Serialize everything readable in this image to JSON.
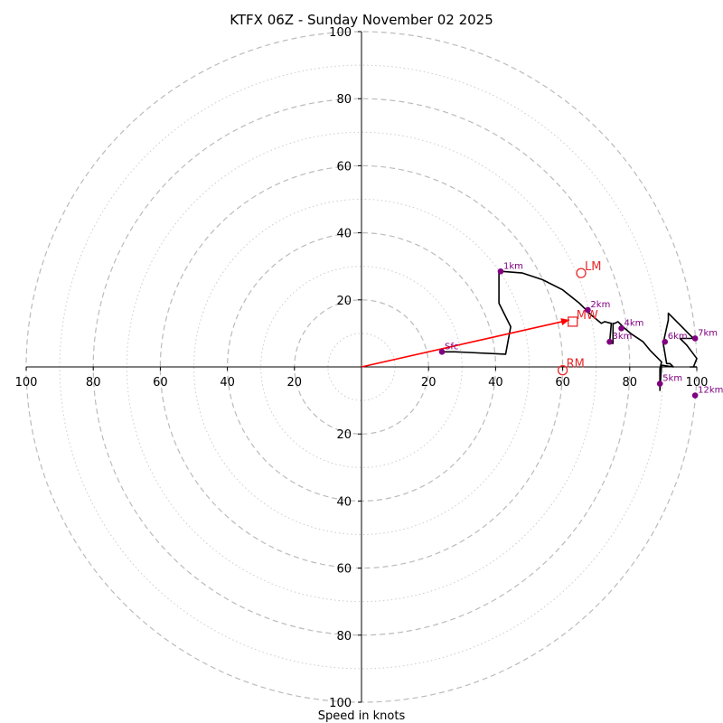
{
  "title": "KTFX 06Z - Sunday November 02 2025",
  "chart_data": {
    "type": "hodograph",
    "title": "KTFX 06Z - Sunday November 02 2025",
    "xlabel": "Speed in knots",
    "units": "knots",
    "max_ring": 100,
    "major_rings": [
      20,
      40,
      60,
      80,
      100
    ],
    "minor_rings": [
      10,
      30,
      50,
      70,
      90
    ],
    "x_tick_labels": [
      {
        "value": -100,
        "label": "100"
      },
      {
        "value": -80,
        "label": "80"
      },
      {
        "value": -60,
        "label": "60"
      },
      {
        "value": -40,
        "label": "40"
      },
      {
        "value": -20,
        "label": "20"
      },
      {
        "value": 20,
        "label": "20"
      },
      {
        "value": 40,
        "label": "40"
      },
      {
        "value": 60,
        "label": "60"
      },
      {
        "value": 80,
        "label": "80"
      },
      {
        "value": 100,
        "label": "100"
      }
    ],
    "y_tick_labels": [
      {
        "value": 100,
        "label": "100"
      },
      {
        "value": 80,
        "label": "80"
      },
      {
        "value": 60,
        "label": "60"
      },
      {
        "value": 40,
        "label": "40"
      },
      {
        "value": 20,
        "label": "20"
      },
      {
        "value": -20,
        "label": "20"
      },
      {
        "value": -40,
        "label": "40"
      },
      {
        "value": -60,
        "label": "60"
      },
      {
        "value": -80,
        "label": "80"
      },
      {
        "value": -100,
        "label": "100"
      }
    ],
    "trace": [
      [
        24,
        4.5
      ],
      [
        28,
        4.5
      ],
      [
        43,
        3.8
      ],
      [
        44.5,
        12
      ],
      [
        41,
        19
      ],
      [
        41,
        28.5
      ],
      [
        42,
        28.5
      ],
      [
        48,
        28
      ],
      [
        54,
        26
      ],
      [
        60,
        23
      ],
      [
        65,
        19
      ],
      [
        67,
        17
      ],
      [
        68.5,
        15.5
      ],
      [
        71.5,
        13
      ],
      [
        72.5,
        13.5
      ],
      [
        74.5,
        13
      ],
      [
        74,
        7
      ],
      [
        75,
        7
      ],
      [
        75,
        13
      ],
      [
        75.5,
        13
      ],
      [
        76.5,
        13.5
      ],
      [
        78.5,
        11.5
      ],
      [
        80.5,
        9.8
      ],
      [
        84,
        7.5
      ],
      [
        86,
        5
      ],
      [
        88,
        3
      ],
      [
        89.5,
        1.5
      ],
      [
        89,
        -0.5
      ],
      [
        89,
        -7
      ],
      [
        89.5,
        0.5
      ],
      [
        93,
        0
      ],
      [
        92,
        1
      ],
      [
        91,
        1
      ],
      [
        90,
        7
      ],
      [
        90.5,
        9.5
      ],
      [
        91.5,
        14
      ],
      [
        91.5,
        16
      ],
      [
        95,
        12.5
      ],
      [
        97.5,
        10
      ],
      [
        99,
        8.5
      ],
      [
        95,
        8.5
      ],
      [
        97,
        6.5
      ],
      [
        100,
        2.5
      ],
      [
        99,
        0
      ],
      [
        98,
        0
      ],
      [
        100,
        0
      ]
    ],
    "height_markers": [
      {
        "label": "Sfc",
        "u": 24,
        "v": 4.5
      },
      {
        "label": "1km",
        "u": 41.5,
        "v": 28.5
      },
      {
        "label": "2km",
        "u": 67.5,
        "v": 17
      },
      {
        "label": "3km",
        "u": 74,
        "v": 7.5
      },
      {
        "label": "4km",
        "u": 77.5,
        "v": 11.5
      },
      {
        "label": "5km",
        "u": 89,
        "v": -5
      },
      {
        "label": "6km",
        "u": 90.5,
        "v": 7.5
      },
      {
        "label": "7km",
        "u": 99.5,
        "v": 8.5
      },
      {
        "label": "12km",
        "u": 99.5,
        "v": -8.5
      }
    ],
    "motion_markers": [
      {
        "label": "LM",
        "u": 65.5,
        "v": 28,
        "shape": "circle"
      },
      {
        "label": "MW",
        "u": 63,
        "v": 13.5,
        "shape": "square"
      },
      {
        "label": "RM",
        "u": 60,
        "v": -1,
        "shape": "circle"
      }
    ],
    "arrow": {
      "from": [
        0,
        0
      ],
      "to": [
        62,
        14
      ]
    },
    "colors": {
      "trace": "#000000",
      "height_marker": "#800080",
      "motion": "#e8292b",
      "arrow": "#ff0000",
      "ring": "#bbbbbb",
      "axis": "#000000"
    }
  }
}
